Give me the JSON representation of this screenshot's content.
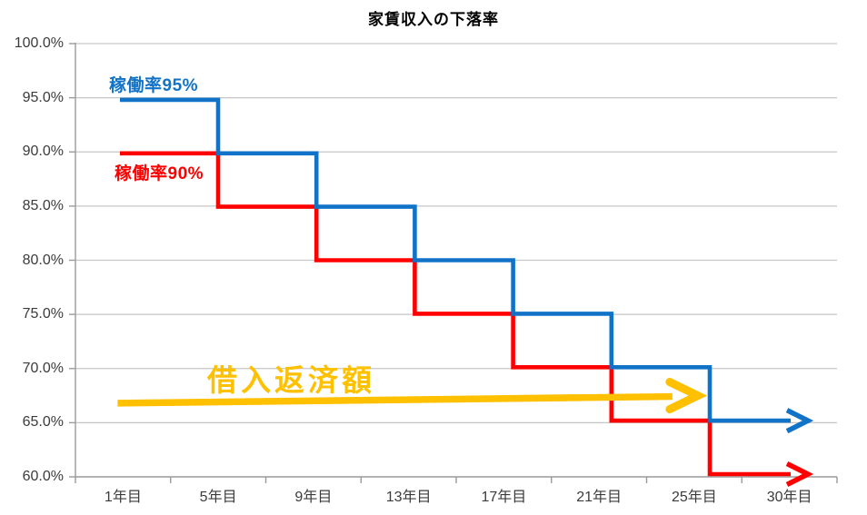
{
  "title": "家賃収入の下落率",
  "chart_data": {
    "type": "line",
    "subtype": "step",
    "title": "家賃収入の下落率",
    "grid": {
      "horizontal": true,
      "vertical": false
    },
    "x_axis": {
      "categories": [
        "1年目",
        "5年目",
        "9年目",
        "13年目",
        "17年目",
        "21年目",
        "25年目",
        "30年目"
      ]
    },
    "y_axis": {
      "tick_labels": [
        "100.0%",
        "95.0%",
        "90.0%",
        "85.0%",
        "80.0%",
        "75.0%",
        "70.0%",
        "65.0%",
        "60.0%"
      ],
      "min": 60,
      "max": 100,
      "step": 5,
      "unit": "%"
    },
    "axis_color": "#9a9a9a",
    "gridline_color": "#c6c6c6",
    "series": [
      {
        "name": "稼働率95%",
        "color": "#1173C8",
        "end_arrow": true,
        "end_year": 30,
        "levels": [
          {
            "from_year": 1,
            "value": 95
          },
          {
            "from_year": 5,
            "value": 90
          },
          {
            "from_year": 9,
            "value": 85
          },
          {
            "from_year": 13,
            "value": 80
          },
          {
            "from_year": 17,
            "value": 75
          },
          {
            "from_year": 21,
            "value": 70
          },
          {
            "from_year": 25,
            "value": 65
          }
        ]
      },
      {
        "name": "稼働率90%",
        "color": "#FF0000",
        "end_arrow": true,
        "end_year": 30,
        "levels": [
          {
            "from_year": 1,
            "value": 90
          },
          {
            "from_year": 5,
            "value": 85
          },
          {
            "from_year": 9,
            "value": 80
          },
          {
            "from_year": 13,
            "value": 75
          },
          {
            "from_year": 17,
            "value": 70
          },
          {
            "from_year": 21,
            "value": 65
          },
          {
            "from_year": 25,
            "value": 60
          }
        ]
      }
    ],
    "annotation_arrow": {
      "label": "借入返済額",
      "color": "#FFC000",
      "from": {
        "year": 1,
        "value": 66.8
      },
      "to": {
        "year": 25,
        "value": 67.5
      }
    }
  }
}
